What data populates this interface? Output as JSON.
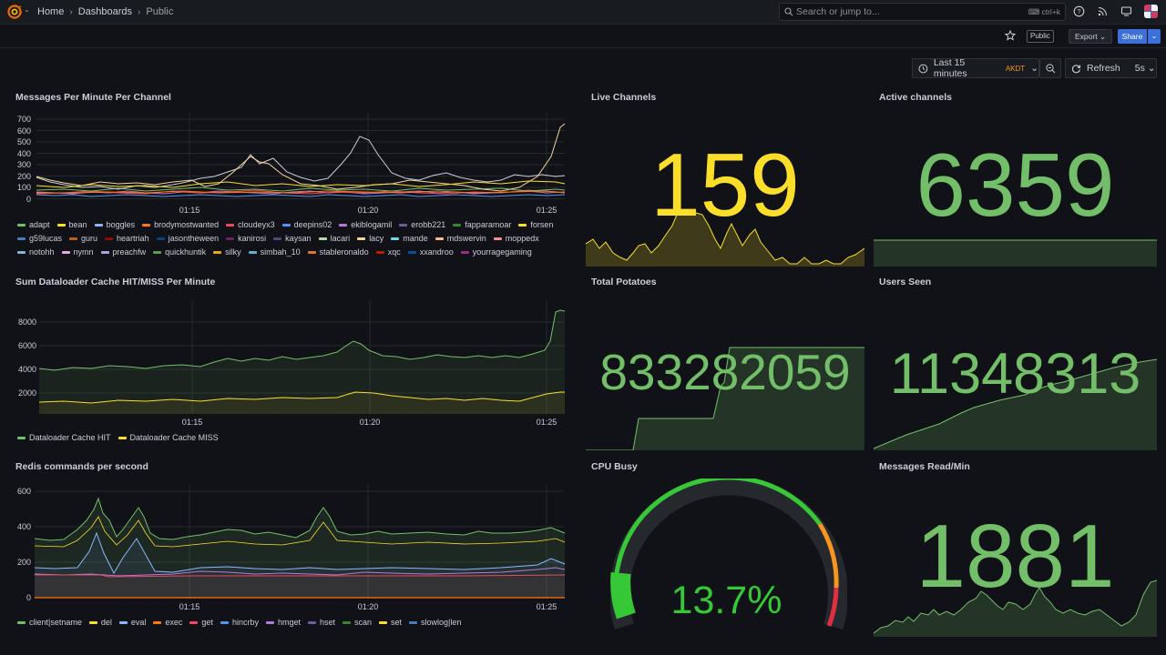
{
  "topbar": {
    "breadcrumbs": [
      "Home",
      "Dashboards",
      "Public"
    ],
    "search_placeholder": "Search or jump to...",
    "search_shortcut": "ctrl+k"
  },
  "subbar": {
    "public_tag": "Public",
    "export_label": "Export",
    "share_label": "Share"
  },
  "timebar": {
    "range_label": "Last 15 minutes",
    "timezone": "AKDT",
    "refresh_label": "Refresh",
    "interval": "5s"
  },
  "colors": {
    "yellow": "#fade2a",
    "green": "#73bf69",
    "accent_blue": "#3d71d9"
  },
  "panels": {
    "messages": {
      "title": "Messages Per Minute Per Channel",
      "yticks": [
        "700",
        "600",
        "500",
        "400",
        "300",
        "200",
        "100",
        "0"
      ],
      "xticks": [
        "01:15",
        "01:20",
        "01:25"
      ],
      "legend": [
        {
          "name": "adapt",
          "color": "#73bf69"
        },
        {
          "name": "bean",
          "color": "#fade2a"
        },
        {
          "name": "boggles",
          "color": "#8ab8ff"
        },
        {
          "name": "brodymostwanted",
          "color": "#ff780a"
        },
        {
          "name": "cloudeyx3",
          "color": "#f2495c"
        },
        {
          "name": "deepins02",
          "color": "#5794f2"
        },
        {
          "name": "ekiblogamil",
          "color": "#b877d9"
        },
        {
          "name": "erobb221",
          "color": "#705da0"
        },
        {
          "name": "fapparamoar",
          "color": "#37872d"
        },
        {
          "name": "forsen",
          "color": "#fade2a"
        },
        {
          "name": "g59lucas",
          "color": "#447ebc"
        },
        {
          "name": "guru",
          "color": "#c15c17"
        },
        {
          "name": "heartriah",
          "color": "#890f02"
        },
        {
          "name": "jasontheween",
          "color": "#0a437c"
        },
        {
          "name": "kanirosi",
          "color": "#6d1f62"
        },
        {
          "name": "kaysan",
          "color": "#584477"
        },
        {
          "name": "lacari",
          "color": "#b7dbab"
        },
        {
          "name": "lacy",
          "color": "#f4d598"
        },
        {
          "name": "mande",
          "color": "#70dbed"
        },
        {
          "name": "mdswervin",
          "color": "#f9ba8f"
        },
        {
          "name": "moppedx",
          "color": "#f29191"
        },
        {
          "name": "notohh",
          "color": "#82b5d8"
        },
        {
          "name": "nymn",
          "color": "#e5a8e2"
        },
        {
          "name": "preachfw",
          "color": "#aea2e0"
        },
        {
          "name": "quickhuntik",
          "color": "#629e51"
        },
        {
          "name": "silky",
          "color": "#e5ac0e"
        },
        {
          "name": "simbah_10",
          "color": "#64b0c8"
        },
        {
          "name": "stableronaldo",
          "color": "#e0752d"
        },
        {
          "name": "xqc",
          "color": "#bf1b00"
        },
        {
          "name": "xxandroo",
          "color": "#0a50a1"
        },
        {
          "name": "yourragegaming",
          "color": "#962d82"
        }
      ]
    },
    "dataloader": {
      "title": "Sum Dataloader Cache HIT/MISS Per Minute",
      "yticks": [
        "8000",
        "6000",
        "4000",
        "2000"
      ],
      "xticks": [
        "01:15",
        "01:20",
        "01:25"
      ],
      "legend": [
        {
          "name": "Dataloader Cache HIT",
          "color": "#73bf69"
        },
        {
          "name": "Dataloader Cache MISS",
          "color": "#fade2a"
        }
      ]
    },
    "redis": {
      "title": "Redis commands per second",
      "yticks": [
        "600",
        "400",
        "200",
        "0"
      ],
      "xticks": [
        "01:15",
        "01:20",
        "01:25"
      ],
      "legend": [
        {
          "name": "client|setname",
          "color": "#73bf69"
        },
        {
          "name": "del",
          "color": "#fade2a"
        },
        {
          "name": "eval",
          "color": "#8ab8ff"
        },
        {
          "name": "exec",
          "color": "#ff780a"
        },
        {
          "name": "get",
          "color": "#f2495c"
        },
        {
          "name": "hincrby",
          "color": "#5794f2"
        },
        {
          "name": "hmget",
          "color": "#b877d9"
        },
        {
          "name": "hset",
          "color": "#705da0"
        },
        {
          "name": "scan",
          "color": "#37872d"
        },
        {
          "name": "set",
          "color": "#fade2a"
        },
        {
          "name": "slowlog|len",
          "color": "#447ebc"
        }
      ]
    },
    "live_channels": {
      "title": "Live Channels",
      "value": "159"
    },
    "active_channels": {
      "title": "Active channels",
      "value": "6359"
    },
    "total_potatoes": {
      "title": "Total Potatoes",
      "value": "833282059"
    },
    "users_seen": {
      "title": "Users Seen",
      "value": "11348313"
    },
    "cpu_busy": {
      "title": "CPU Busy",
      "value": "13.7%",
      "percent": 13.7
    },
    "messages_read": {
      "title": "Messages Read/Min",
      "value": "1881"
    }
  }
}
